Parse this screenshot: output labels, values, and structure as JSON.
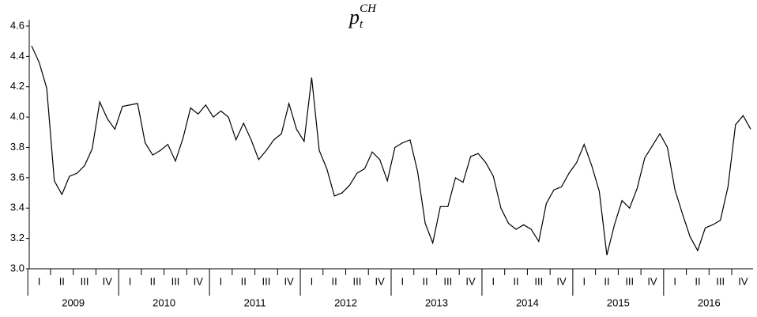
{
  "chart_data": {
    "type": "line",
    "title": {
      "base": "p",
      "sub": "t",
      "sup": "CH"
    },
    "years": [
      "2009",
      "2010",
      "2011",
      "2012",
      "2013",
      "2014",
      "2015",
      "2016"
    ],
    "quarters": [
      "I",
      "II",
      "III",
      "IV",
      "I",
      "II",
      "III",
      "IV",
      "I",
      "II",
      "III",
      "IV",
      "I",
      "II",
      "III",
      "IV",
      "I",
      "II",
      "III",
      "IV",
      "I",
      "II",
      "III",
      "IV",
      "I",
      "II",
      "III",
      "IV",
      "I",
      "II",
      "III",
      "IV"
    ],
    "color": "#000000",
    "values": [
      4.47,
      4.36,
      4.19,
      3.58,
      3.49,
      3.61,
      3.63,
      3.68,
      3.79,
      4.1,
      3.99,
      3.92,
      4.07,
      4.08,
      4.09,
      3.83,
      3.75,
      3.78,
      3.82,
      3.71,
      3.86,
      4.06,
      4.02,
      4.08,
      4.0,
      4.04,
      4.0,
      3.85,
      3.96,
      3.85,
      3.72,
      3.78,
      3.85,
      3.89,
      4.09,
      3.92,
      3.84,
      4.26,
      3.78,
      3.66,
      3.48,
      3.5,
      3.55,
      3.63,
      3.66,
      3.77,
      3.72,
      3.58,
      3.8,
      3.83,
      3.85,
      3.64,
      3.3,
      3.17,
      3.41,
      3.41,
      3.6,
      3.57,
      3.74,
      3.76,
      3.7,
      3.61,
      3.4,
      3.3,
      3.26,
      3.29,
      3.26,
      3.18,
      3.43,
      3.52,
      3.54,
      3.63,
      3.7,
      3.82,
      3.68,
      3.51,
      3.09,
      3.29,
      3.45,
      3.4,
      3.53,
      3.73,
      3.81,
      3.89,
      3.8,
      3.52,
      3.36,
      3.21,
      3.12,
      3.27,
      3.29,
      3.32,
      3.54,
      3.95,
      4.01,
      3.92
    ],
    "ylim": [
      3.0,
      4.6
    ],
    "yticks": [
      {
        "value": 3.0,
        "label": "3.0"
      },
      {
        "value": 3.2,
        "label": "3.2"
      },
      {
        "value": 3.4,
        "label": "3.4"
      },
      {
        "value": 3.6,
        "label": "3.6"
      },
      {
        "value": 3.8,
        "label": "3.8"
      },
      {
        "value": 4.0,
        "label": "4.0"
      },
      {
        "value": 4.2,
        "label": "4.2"
      },
      {
        "value": 4.4,
        "label": "4.4"
      },
      {
        "value": 4.6,
        "label": "4.6"
      }
    ]
  }
}
